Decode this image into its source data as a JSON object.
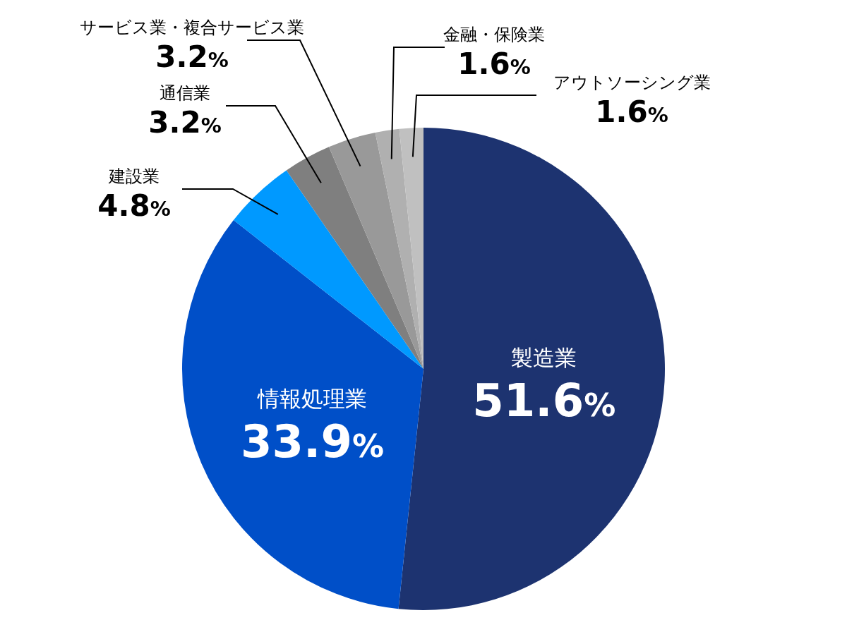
{
  "chart_data": {
    "type": "pie",
    "categories": [
      "製造業",
      "情報処理業",
      "建設業",
      "通信業",
      "サービス業・複合サービス業",
      "金融・保険業",
      "アウトソーシング業"
    ],
    "values": [
      51.6,
      33.9,
      4.8,
      3.2,
      3.2,
      1.6,
      1.6
    ],
    "colors": [
      "#1d3370",
      "#004fc8",
      "#0099ff",
      "#7f7f7f",
      "#999999",
      "#b0b0b0",
      "#c0c0c0"
    ],
    "value_labels": [
      "51.6%",
      "33.9%",
      "4.8%",
      "3.2%",
      "3.2%",
      "1.6%",
      "1.6%"
    ]
  }
}
